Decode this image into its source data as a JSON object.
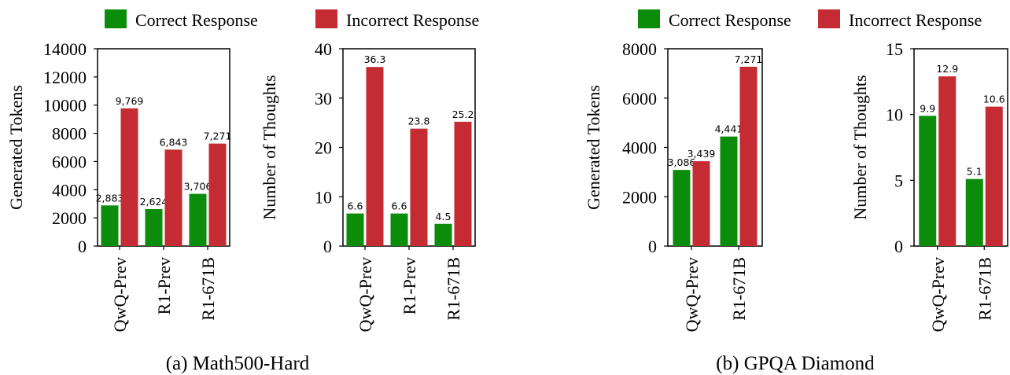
{
  "colors": {
    "correct": "#0b8c0b",
    "incorrect": "#c42b32",
    "axis": "#000000"
  },
  "legends": [
    {
      "items": [
        {
          "label": "Correct Response",
          "color": "#0b8c0b"
        },
        {
          "label": "Incorrect Response",
          "color": "#c42b32"
        }
      ]
    },
    {
      "items": [
        {
          "label": "Correct Response",
          "color": "#0b8c0b"
        },
        {
          "label": "Incorrect Response",
          "color": "#c42b32"
        }
      ]
    }
  ],
  "subcaptions": [
    "(a)  Math500-Hard",
    "(b)  GPQA Diamond"
  ],
  "chart_data": [
    {
      "type": "bar",
      "group": "(a)  Math500-Hard",
      "ylabel": "Generated Tokens",
      "ylim": [
        0,
        14000
      ],
      "yticks": [
        "0",
        "2000",
        "4000",
        "6000",
        "8000",
        "10000",
        "12000",
        "14000"
      ],
      "categories": [
        "QwQ-Prev",
        "R1-Prev",
        "R1-671B"
      ],
      "series": [
        {
          "name": "Correct Response",
          "values": [
            2883,
            2624,
            3706
          ],
          "labels": [
            "2,883",
            "2,624",
            "3,706"
          ]
        },
        {
          "name": "Incorrect Response",
          "values": [
            9769,
            6843,
            7271
          ],
          "labels": [
            "9,769",
            "6,843",
            "7,271"
          ]
        }
      ]
    },
    {
      "type": "bar",
      "group": "(a)  Math500-Hard",
      "ylabel": "Number of Thoughts",
      "ylim": [
        0,
        40
      ],
      "yticks": [
        "0",
        "10",
        "20",
        "30",
        "40"
      ],
      "categories": [
        "QwQ-Prev",
        "R1-Prev",
        "R1-671B"
      ],
      "series": [
        {
          "name": "Correct Response",
          "values": [
            6.6,
            6.6,
            4.5
          ],
          "labels": [
            "6.6",
            "6.6",
            "4.5"
          ]
        },
        {
          "name": "Incorrect Response",
          "values": [
            36.3,
            23.8,
            25.2
          ],
          "labels": [
            "36.3",
            "23.8",
            "25.2"
          ]
        }
      ]
    },
    {
      "type": "bar",
      "group": "(b)  GPQA Diamond",
      "ylabel": "Generated Tokens",
      "ylim": [
        0,
        8000
      ],
      "yticks": [
        "0",
        "2000",
        "4000",
        "6000",
        "8000"
      ],
      "categories": [
        "QwQ-Prev",
        "R1-671B"
      ],
      "series": [
        {
          "name": "Correct Response",
          "values": [
            3086,
            4441
          ],
          "labels": [
            "3,086",
            "4,441"
          ]
        },
        {
          "name": "Incorrect Response",
          "values": [
            3439,
            7271
          ],
          "labels": [
            "3,439",
            "7,271"
          ]
        }
      ]
    },
    {
      "type": "bar",
      "group": "(b)  GPQA Diamond",
      "ylabel": "Number of Thoughts",
      "ylim": [
        0,
        15
      ],
      "yticks": [
        "0",
        "5",
        "10",
        "15"
      ],
      "categories": [
        "QwQ-Prev",
        "R1-671B"
      ],
      "series": [
        {
          "name": "Correct Response",
          "values": [
            9.9,
            5.1
          ],
          "labels": [
            "9.9",
            "5.1"
          ]
        },
        {
          "name": "Incorrect Response",
          "values": [
            12.9,
            10.6
          ],
          "labels": [
            "12.9",
            "10.6"
          ]
        }
      ]
    }
  ]
}
